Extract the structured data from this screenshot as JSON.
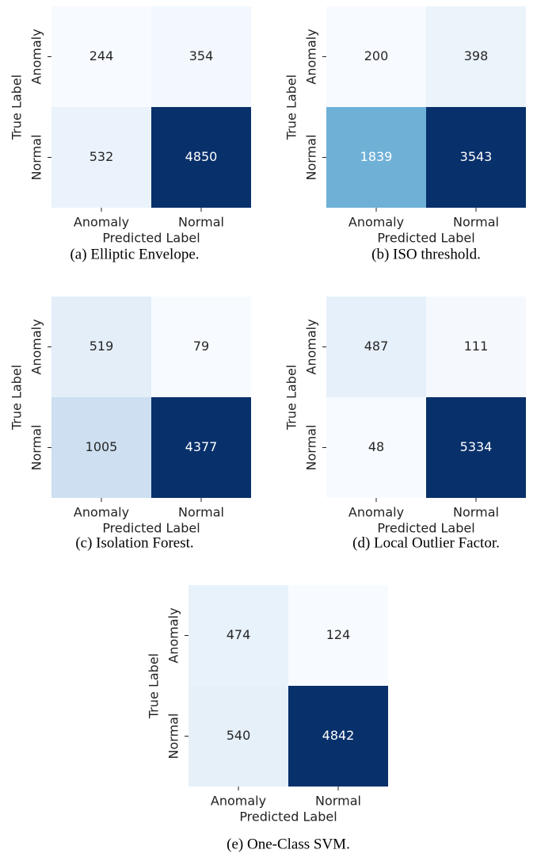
{
  "chart_data": [
    {
      "type": "heatmap",
      "colormap": "Blues",
      "x_categories": [
        "Anomaly",
        "Normal"
      ],
      "y_categories": [
        "Anomaly",
        "Normal"
      ],
      "values": [
        [
          244,
          354
        ],
        [
          532,
          4850
        ]
      ],
      "xlabel": "Predicted Label",
      "ylabel": "True Label",
      "caption": "(a) Elliptic Envelope."
    },
    {
      "type": "heatmap",
      "colormap": "Blues",
      "x_categories": [
        "Anomaly",
        "Normal"
      ],
      "y_categories": [
        "Anomaly",
        "Normal"
      ],
      "values": [
        [
          200,
          398
        ],
        [
          1839,
          3543
        ]
      ],
      "xlabel": "Predicted Label",
      "ylabel": "True Label",
      "caption": "(b) ISO threshold."
    },
    {
      "type": "heatmap",
      "colormap": "Blues",
      "x_categories": [
        "Anomaly",
        "Normal"
      ],
      "y_categories": [
        "Anomaly",
        "Normal"
      ],
      "values": [
        [
          519,
          79
        ],
        [
          1005,
          4377
        ]
      ],
      "xlabel": "Predicted Label",
      "ylabel": "True Label",
      "caption": "(c) Isolation Forest."
    },
    {
      "type": "heatmap",
      "colormap": "Blues",
      "x_categories": [
        "Anomaly",
        "Normal"
      ],
      "y_categories": [
        "Anomaly",
        "Normal"
      ],
      "values": [
        [
          487,
          111
        ],
        [
          48,
          5334
        ]
      ],
      "xlabel": "Predicted Label",
      "ylabel": "True Label",
      "caption": "(d) Local Outlier Factor."
    },
    {
      "type": "heatmap",
      "colormap": "Blues",
      "x_categories": [
        "Anomaly",
        "Normal"
      ],
      "y_categories": [
        "Anomaly",
        "Normal"
      ],
      "values": [
        [
          474,
          124
        ],
        [
          540,
          4842
        ]
      ],
      "xlabel": "Predicted Label",
      "ylabel": "True Label",
      "caption": "(e) One-Class SVM."
    }
  ]
}
